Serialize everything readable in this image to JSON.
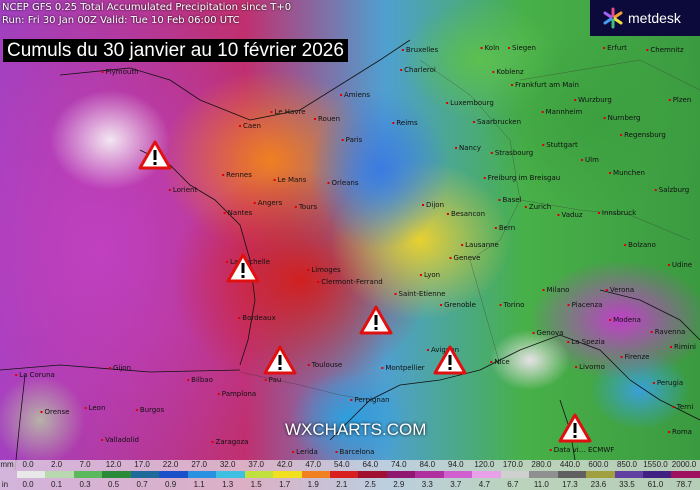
{
  "header": {
    "line1": "NCEP GFS 0.25 Total Accumulated Precipitation since T+0",
    "line2": "Run: Fri 30 Jan 00Z Valid: Tue 10 Feb 06:00 UTC"
  },
  "title": "Cumuls du 30 janvier au 10 février 2026",
  "logo": {
    "name": "metdesk"
  },
  "watermark": "WXCHARTS.COM",
  "credit": "Data vi… ECMWF",
  "warning_icon": "warning-triangle-icon",
  "cities": [
    "Plymouth",
    "Bruxelles",
    "Koln",
    "Siegen",
    "Erfurt",
    "Chemnitz",
    "Charleroi",
    "Koblenz",
    "Frankfurt am Main",
    "Amiens",
    "Luxembourg",
    "Mannheim",
    "Wurzburg",
    "Plzen",
    "Le Havre",
    "Rouen",
    "Caen",
    "Reims",
    "Saarbrucken",
    "Nurnberg",
    "Regensburg",
    "Paris",
    "Stuttgart",
    "Nancy",
    "Strasbourg",
    "Ulm",
    "Rennes",
    "Le Mans",
    "Orleans",
    "Freiburg im Breisgau",
    "Munchen",
    "Salzburg",
    "Lorient",
    "Angers",
    "Tours",
    "Dijon",
    "Besancon",
    "Basel",
    "Zurich",
    "Vaduz",
    "Innsbruck",
    "Nantes",
    "Bern",
    "Lausanne",
    "Bolzano",
    "La Rochelle",
    "Limoges",
    "Clermont-Ferrand",
    "Lyon",
    "Geneve",
    "Udine",
    "Saint-Etienne",
    "Grenoble",
    "Milano",
    "Torino",
    "Piacenza",
    "Verona",
    "Bordeaux",
    "Genova",
    "La Spezia",
    "Modena",
    "Ravenna",
    "Rimini",
    "Avignon",
    "Nice",
    "Firenze",
    "Pau",
    "Toulouse",
    "Montpellier",
    "Livorno",
    "Perugia",
    "La Coruna",
    "Gijon",
    "Bilbao",
    "Pamplona",
    "Leon",
    "Burgos",
    "Orense",
    "Terni",
    "Valladolid",
    "Zaragoza",
    "Lerida",
    "Perpignan",
    "Barcelona",
    "Roma"
  ],
  "legend": {
    "mm_label": "mm",
    "in_label": "in",
    "mm": [
      "0.0",
      "2.0",
      "7.0",
      "12.0",
      "17.0",
      "22.0",
      "27.0",
      "32.0",
      "37.0",
      "42.0",
      "47.0",
      "54.0",
      "64.0",
      "74.0",
      "84.0",
      "94.0",
      "120.0",
      "170.0",
      "280.0",
      "440.0",
      "600.0",
      "850.0",
      "1550.0",
      "2000.0"
    ],
    "in": [
      "0.0",
      "0.1",
      "0.3",
      "0.5",
      "0.7",
      "0.9",
      "1.1",
      "1.3",
      "1.5",
      "1.7",
      "1.9",
      "2.1",
      "2.5",
      "2.9",
      "3.3",
      "3.7",
      "4.7",
      "6.7",
      "11.0",
      "17.3",
      "23.6",
      "33.5",
      "61.0",
      "78.7"
    ],
    "colors": [
      "#e8e8e8",
      "#b8d8b0",
      "#5cb85c",
      "#2a8a3a",
      "#1f6a9a",
      "#1a50c8",
      "#2a90e0",
      "#40c0e0",
      "#c0e040",
      "#f0e020",
      "#f08020",
      "#d82020",
      "#a01030",
      "#901870",
      "#b030a0",
      "#d060d0",
      "#e8a0e8",
      "#d0d0d0",
      "#909090",
      "#606060",
      "#a0a040",
      "#6040a0",
      "#402080",
      "#a01060"
    ]
  }
}
